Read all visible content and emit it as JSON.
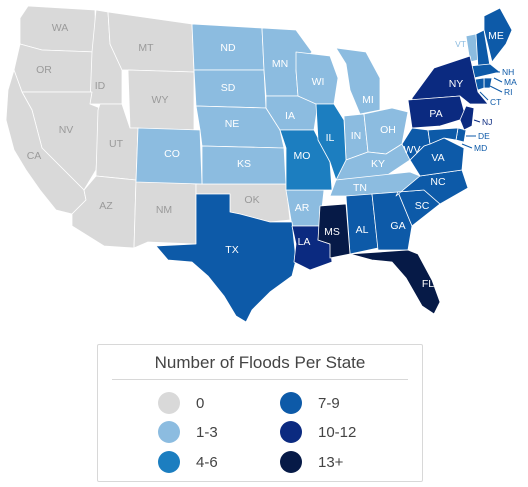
{
  "legend": {
    "title": "Number of Floods Per State",
    "items": [
      {
        "label": "0",
        "color": "#d9d9d9"
      },
      {
        "label": "1-3",
        "color": "#8cbce0"
      },
      {
        "label": "4-6",
        "color": "#1c7ec0"
      },
      {
        "label": "7-9",
        "color": "#0d5aa8"
      },
      {
        "label": "10-12",
        "color": "#0b2a80"
      },
      {
        "label": "13+",
        "color": "#061a47"
      }
    ]
  },
  "states": [
    {
      "abbr": "WA",
      "bin": 0
    },
    {
      "abbr": "OR",
      "bin": 0
    },
    {
      "abbr": "ID",
      "bin": 0
    },
    {
      "abbr": "MT",
      "bin": 0
    },
    {
      "abbr": "WY",
      "bin": 0
    },
    {
      "abbr": "NV",
      "bin": 0
    },
    {
      "abbr": "UT",
      "bin": 0
    },
    {
      "abbr": "CA",
      "bin": 0
    },
    {
      "abbr": "AZ",
      "bin": 0
    },
    {
      "abbr": "NM",
      "bin": 0
    },
    {
      "abbr": "OK",
      "bin": 0
    },
    {
      "abbr": "ND",
      "bin": 1
    },
    {
      "abbr": "SD",
      "bin": 1
    },
    {
      "abbr": "NE",
      "bin": 1
    },
    {
      "abbr": "KS",
      "bin": 1
    },
    {
      "abbr": "CO",
      "bin": 1
    },
    {
      "abbr": "MN",
      "bin": 1
    },
    {
      "abbr": "IA",
      "bin": 1
    },
    {
      "abbr": "WI",
      "bin": 1
    },
    {
      "abbr": "MI",
      "bin": 1
    },
    {
      "abbr": "IN",
      "bin": 1
    },
    {
      "abbr": "OH",
      "bin": 1
    },
    {
      "abbr": "KY",
      "bin": 1
    },
    {
      "abbr": "TN",
      "bin": 1
    },
    {
      "abbr": "AR",
      "bin": 1
    },
    {
      "abbr": "VT",
      "bin": 1
    },
    {
      "abbr": "MO",
      "bin": 2
    },
    {
      "abbr": "IL",
      "bin": 2
    },
    {
      "abbr": "TX",
      "bin": 3
    },
    {
      "abbr": "AL",
      "bin": 3
    },
    {
      "abbr": "GA",
      "bin": 3
    },
    {
      "abbr": "SC",
      "bin": 3
    },
    {
      "abbr": "NC",
      "bin": 3
    },
    {
      "abbr": "VA",
      "bin": 3
    },
    {
      "abbr": "WV",
      "bin": 3
    },
    {
      "abbr": "ME",
      "bin": 3
    },
    {
      "abbr": "NH",
      "bin": 3
    },
    {
      "abbr": "MA",
      "bin": 3
    },
    {
      "abbr": "RI",
      "bin": 3
    },
    {
      "abbr": "CT",
      "bin": 3
    },
    {
      "abbr": "DE",
      "bin": 3
    },
    {
      "abbr": "MD",
      "bin": 3
    },
    {
      "abbr": "LA",
      "bin": 4
    },
    {
      "abbr": "NY",
      "bin": 4
    },
    {
      "abbr": "PA",
      "bin": 4
    },
    {
      "abbr": "NJ",
      "bin": 4
    },
    {
      "abbr": "MS",
      "bin": 5
    },
    {
      "abbr": "FL",
      "bin": 5
    }
  ]
}
